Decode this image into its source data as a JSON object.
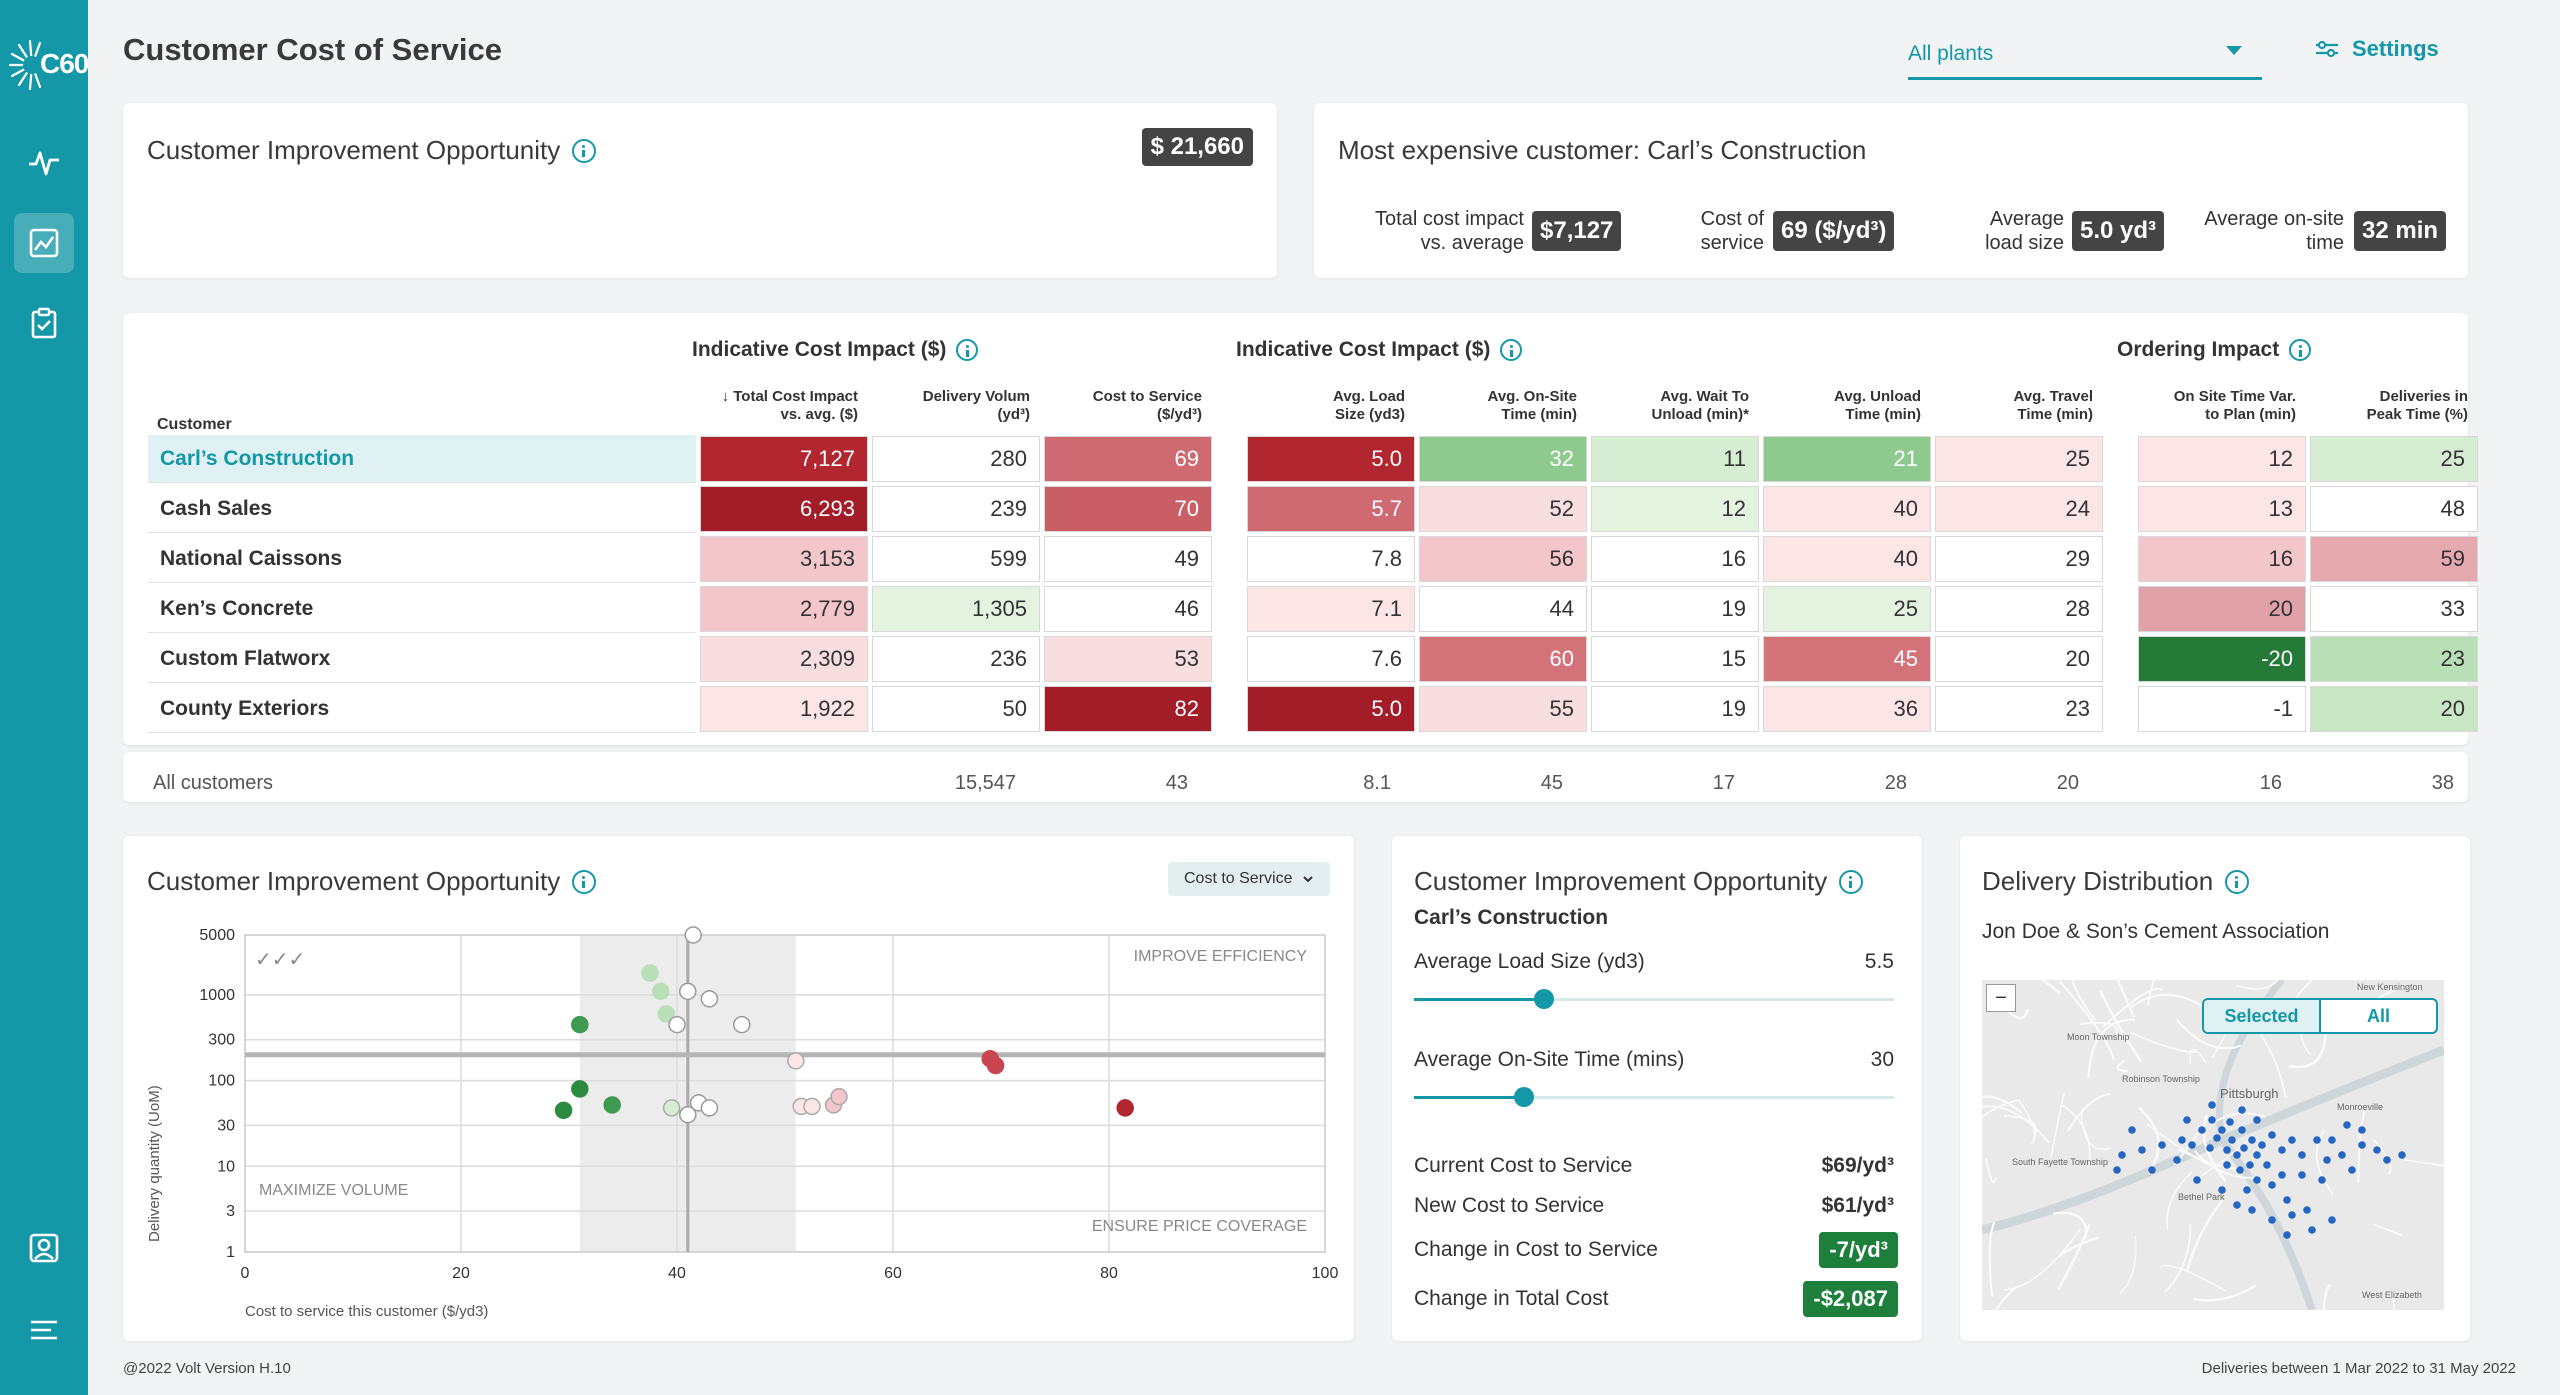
{
  "app": {
    "logo_text": "C60",
    "title": "Customer Cost of Service"
  },
  "filter": {
    "plants": "All plants",
    "settings": "Settings"
  },
  "opportunity": {
    "title": "Customer Improvement Opportunity",
    "value": "$ 21,660"
  },
  "expensive": {
    "title": "Most expensive customer: Carl’s Construction",
    "kpis": [
      {
        "label1": "Total cost impact",
        "label2": "vs. average",
        "value": "$7,127"
      },
      {
        "label1": "Cost of",
        "label2": "service",
        "value": "69 ($/yd³)"
      },
      {
        "label1": "Average",
        "label2": "load size",
        "value": "5.0 yd³"
      },
      {
        "label1": "Average on-site",
        "label2": "time",
        "value": "32 min"
      }
    ]
  },
  "table": {
    "groups": [
      "Indicative Cost Impact ($)",
      "Indicative Cost Impact ($)",
      "Ordering Impact"
    ],
    "customer_header": "Customer",
    "sort_glyph": "↓",
    "columns": [
      {
        "l1": "Total Cost Impact",
        "l2": "vs. avg. ($)"
      },
      {
        "l1": "Delivery Volum",
        "l2": "(yd³)"
      },
      {
        "l1": "Cost to Service",
        "l2": "($/yd³)"
      },
      {
        "l1": "Avg. Load",
        "l2": "Size (yd3)"
      },
      {
        "l1": "Avg. On-Site",
        "l2": "Time (min)"
      },
      {
        "l1": "Avg. Wait To",
        "l2": "Unload (min)*"
      },
      {
        "l1": "Avg. Unload",
        "l2": "Time (min)"
      },
      {
        "l1": "Avg. Travel",
        "l2": "Time (min)"
      },
      {
        "l1": "On Site Time Var.",
        "l2": "to Plan (min)"
      },
      {
        "l1": "Deliveries in",
        "l2": "Peak Time (%)"
      }
    ],
    "rows": [
      {
        "name": "Carl’s Construction",
        "values": [
          "7,127",
          "280",
          "69",
          "5.0",
          "32",
          "11",
          "21",
          "25",
          "12",
          "25"
        ]
      },
      {
        "name": "Cash Sales",
        "values": [
          "6,293",
          "239",
          "70",
          "5.7",
          "52",
          "12",
          "40",
          "24",
          "13",
          "48"
        ]
      },
      {
        "name": "National Caissons",
        "values": [
          "3,153",
          "599",
          "49",
          "7.8",
          "56",
          "16",
          "40",
          "29",
          "16",
          "59"
        ]
      },
      {
        "name": "Ken’s Concrete",
        "values": [
          "2,779",
          "1,305",
          "46",
          "7.1",
          "44",
          "19",
          "25",
          "28",
          "20",
          "33"
        ]
      },
      {
        "name": "Custom Flatworx",
        "values": [
          "2,309",
          "236",
          "53",
          "7.6",
          "60",
          "15",
          "45",
          "20",
          "-20",
          "23"
        ]
      },
      {
        "name": "County Exteriors",
        "values": [
          "1,922",
          "50",
          "82",
          "5.0",
          "55",
          "19",
          "36",
          "23",
          "-1",
          "20"
        ]
      }
    ],
    "cell_colors": [
      [
        "#b22630",
        "#ffffff",
        "#cf6a72",
        "#b22630",
        "#8ec98e",
        "#d6ecd3",
        "#8ec98e",
        "#fbe5e5",
        "#fbe5e5",
        "#d6ecd3"
      ],
      [
        "#a31d29",
        "#ffffff",
        "#c95e67",
        "#cf6a72",
        "#f8dede",
        "#e4f2e0",
        "#fbe5e5",
        "#fbe5e5",
        "#fbe5e5",
        "#ffffff"
      ],
      [
        "#f2c6ca",
        "#ffffff",
        "#ffffff",
        "#ffffff",
        "#f2c6ca",
        "#ffffff",
        "#fbe5e5",
        "#ffffff",
        "#f2c6ca",
        "#e6a9af"
      ],
      [
        "#f2c6ca",
        "#e4f2e0",
        "#ffffff",
        "#fbe5e5",
        "#ffffff",
        "#ffffff",
        "#e4f2e0",
        "#ffffff",
        "#e0a2a8",
        "#ffffff"
      ],
      [
        "#f8dede",
        "#ffffff",
        "#f8dede",
        "#ffffff",
        "#d4727a",
        "#ffffff",
        "#d4727a",
        "#ffffff",
        "#257a38",
        "#b9dfb6"
      ],
      [
        "#fbe5e5",
        "#ffffff",
        "#a31d29",
        "#a31d29",
        "#f8dede",
        "#ffffff",
        "#fbe5e5",
        "#ffffff",
        "#ffffff",
        "#c9e6c5"
      ]
    ],
    "light_text_cells": [
      [
        0,
        0
      ],
      [
        0,
        2
      ],
      [
        0,
        3
      ],
      [
        0,
        4
      ],
      [
        0,
        6
      ],
      [
        1,
        0
      ],
      [
        1,
        2
      ],
      [
        1,
        3
      ],
      [
        4,
        4
      ],
      [
        4,
        6
      ],
      [
        4,
        8
      ],
      [
        5,
        2
      ],
      [
        5,
        3
      ]
    ],
    "footer": {
      "label": "All customers",
      "values": [
        "",
        "15,547",
        "43",
        "8.1",
        "45",
        "17",
        "28",
        "20",
        "16",
        "38"
      ]
    }
  },
  "scatter": {
    "title": "Customer Improvement Opportunity",
    "dropdown": "Cost to Service",
    "ylabel": "Delivery quantity (UoM)",
    "xlabel": "Cost to service this customer ($/yd3)",
    "regions": {
      "top_right": "IMPROVE EFFICIENCY",
      "bottom_left": "MAXIMIZE VOLUME",
      "bottom_right": "ENSURE PRICE COVERAGE"
    },
    "check_marks": "✓✓✓"
  },
  "chart_data": {
    "type": "scatter",
    "title": "Customer Improvement Opportunity",
    "xlabel": "Cost to service this customer ($/yd3)",
    "ylabel": "Delivery quantity (UoM)",
    "xlim": [
      0,
      100
    ],
    "x_ticks": [
      0,
      20,
      40,
      60,
      80,
      100
    ],
    "y_scale": "log",
    "y_ticks": [
      1,
      3,
      10,
      30,
      100,
      300,
      1000,
      5000
    ],
    "points": [
      {
        "x": 41.5,
        "y": 5000,
        "color": "#ffffff"
      },
      {
        "x": 37.5,
        "y": 1800,
        "color": "#b9dfb6"
      },
      {
        "x": 38.5,
        "y": 1100,
        "color": "#b9dfb6"
      },
      {
        "x": 41.0,
        "y": 1100,
        "color": "#ffffff"
      },
      {
        "x": 43.0,
        "y": 900,
        "color": "#ffffff"
      },
      {
        "x": 39.0,
        "y": 600,
        "color": "#b9dfb6"
      },
      {
        "x": 40.0,
        "y": 450,
        "color": "#ffffff"
      },
      {
        "x": 31.0,
        "y": 450,
        "color": "#3d9a4f"
      },
      {
        "x": 46.0,
        "y": 450,
        "color": "#ffffff"
      },
      {
        "x": 51.0,
        "y": 170,
        "color": "#fbe5e5"
      },
      {
        "x": 69.0,
        "y": 180,
        "color": "#c94550"
      },
      {
        "x": 69.5,
        "y": 150,
        "color": "#c94550"
      },
      {
        "x": 31.0,
        "y": 80,
        "color": "#2d8a41"
      },
      {
        "x": 42.0,
        "y": 55,
        "color": "#ffffff"
      },
      {
        "x": 29.5,
        "y": 45,
        "color": "#2d8a41"
      },
      {
        "x": 34.0,
        "y": 52,
        "color": "#3d9a4f"
      },
      {
        "x": 39.5,
        "y": 48,
        "color": "#d6ecd3"
      },
      {
        "x": 43.0,
        "y": 48,
        "color": "#ffffff"
      },
      {
        "x": 41.0,
        "y": 40,
        "color": "#ffffff"
      },
      {
        "x": 51.5,
        "y": 50,
        "color": "#fbe5e5"
      },
      {
        "x": 52.5,
        "y": 50,
        "color": "#fbe5e5"
      },
      {
        "x": 54.5,
        "y": 52,
        "color": "#f2c6ca"
      },
      {
        "x": 55.0,
        "y": 65,
        "color": "#f2c6ca"
      },
      {
        "x": 81.5,
        "y": 48,
        "color": "#b22630"
      }
    ],
    "reference_lines": {
      "x": 41,
      "y": 200
    },
    "highlight_band_x": [
      31,
      51
    ]
  },
  "detail": {
    "title": "Customer Improvement Opportunity",
    "customer": "Carl’s Construction",
    "slider1": {
      "label": "Average Load Size (yd3)",
      "value": "5.5",
      "fraction": 0.27
    },
    "slider2": {
      "label": "Average On-Site Time (mins)",
      "value": "30",
      "fraction": 0.23
    },
    "current_label": "Current Cost to Service",
    "current_value": "$69/yd³",
    "new_label": "New Cost to Service",
    "new_value": "$61/yd³",
    "change_label": "Change in Cost to Service",
    "change_value": "-7/yd³",
    "total_label": "Change in Total Cost",
    "total_value": "-$2,087"
  },
  "distribution": {
    "title": "Delivery Distribution",
    "association": "Jon Doe & Son’s Cement Association",
    "zoom_out": "−",
    "toggle_selected": "Selected",
    "toggle_all": "All",
    "places": [
      "Pittsburgh",
      "Bethel Park",
      "Monroeville",
      "Robinson Township",
      "Moon Township",
      "South Fayette Township",
      "New Kensington",
      "West Elizabeth"
    ]
  },
  "footer": {
    "version": "@2022 Volt  Version H.10",
    "range": "Deliveries between 1 Mar 2022 to 31 May 2022"
  },
  "colors": {
    "accent": "#1497a6",
    "dark_red": "#a31d29",
    "dark_green": "#1e7f3c"
  }
}
